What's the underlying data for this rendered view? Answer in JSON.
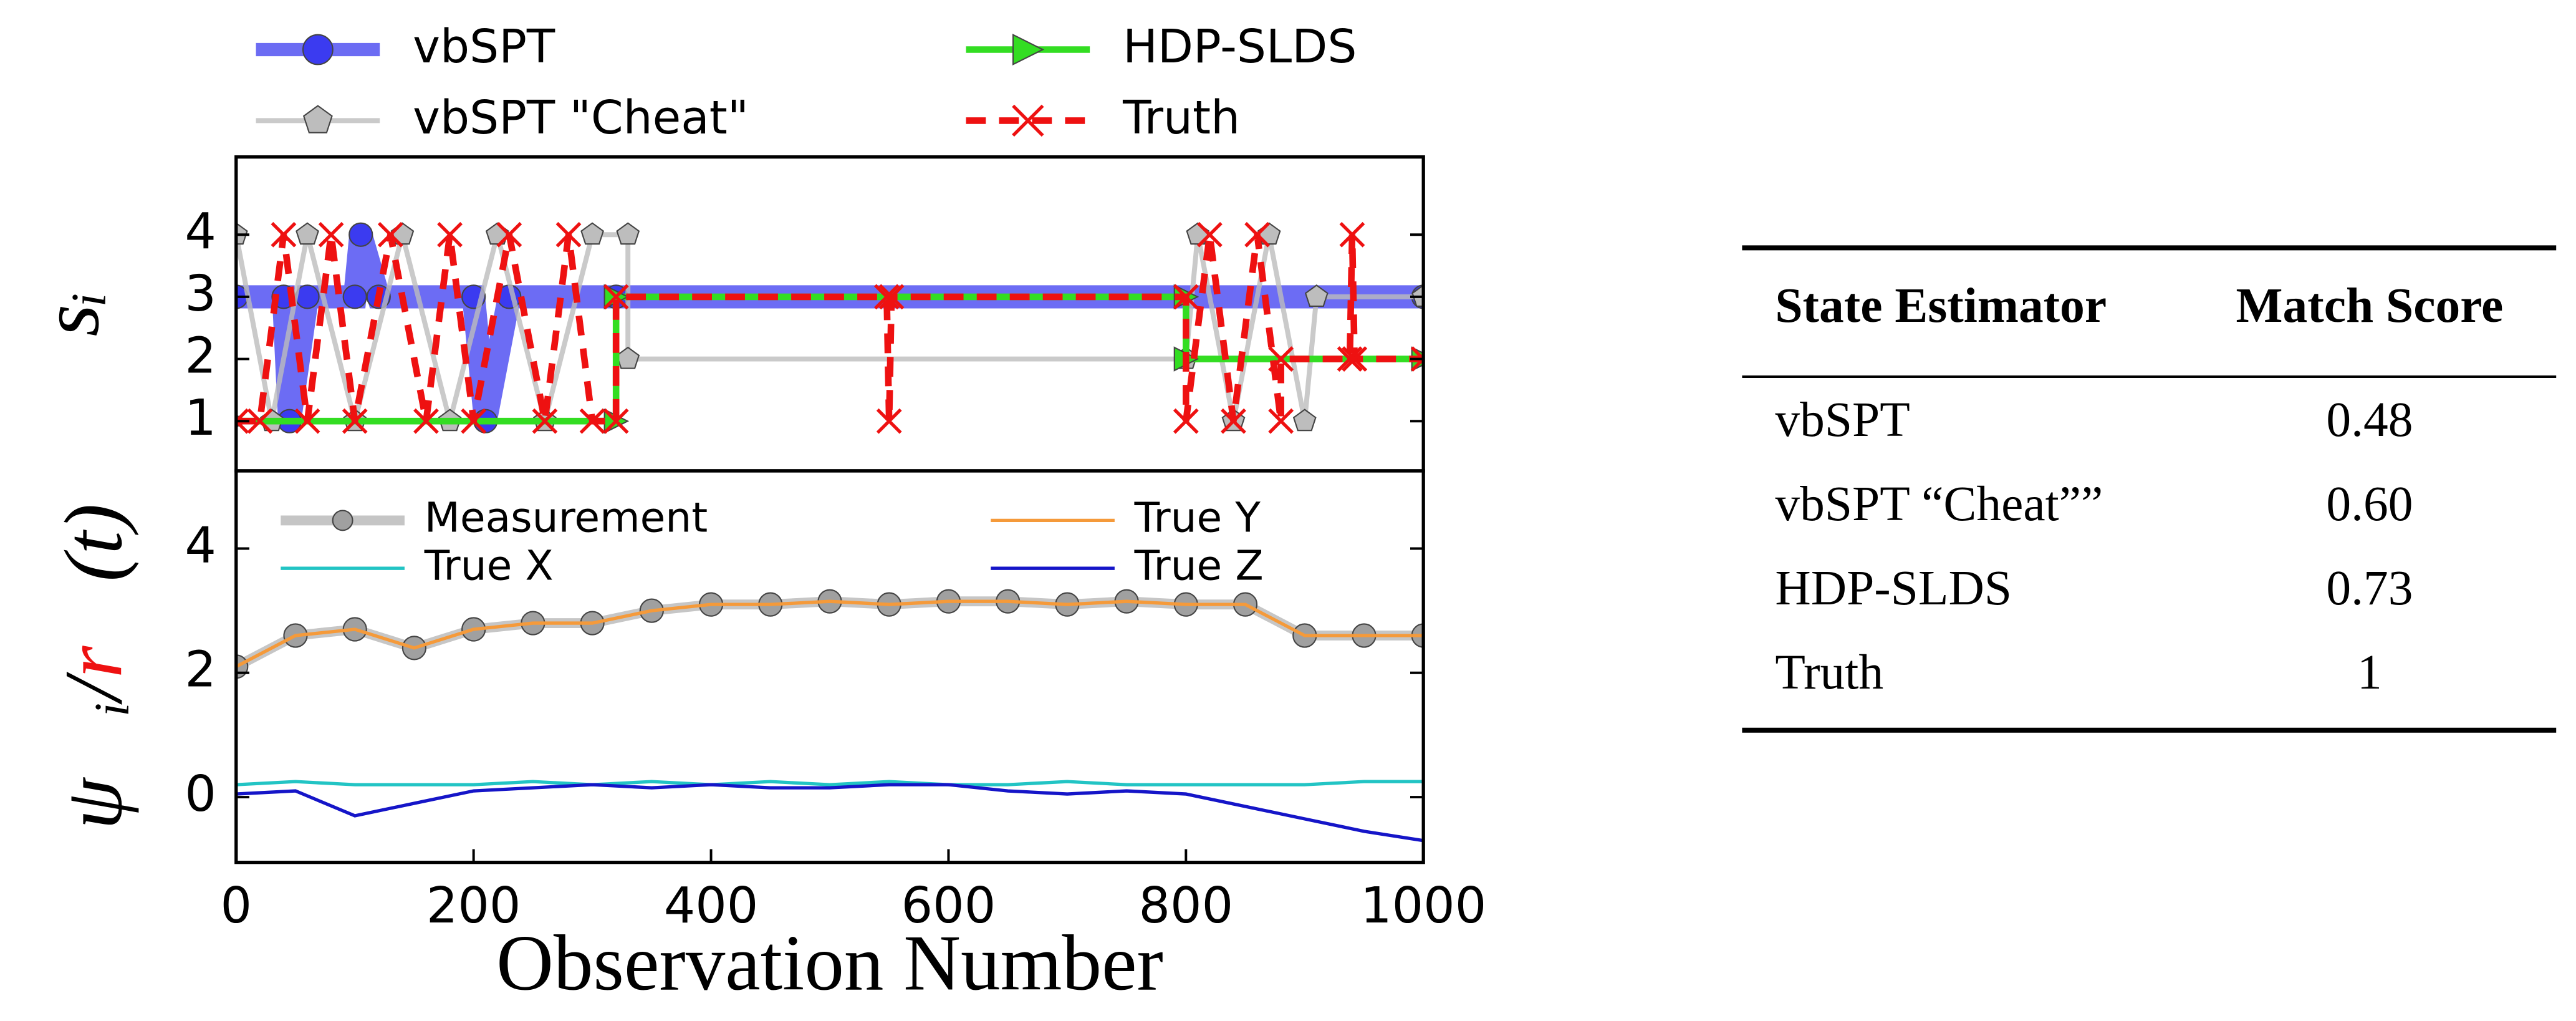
{
  "chart_data": [
    {
      "type": "line",
      "ylabel": [
        "sᵢ"
      ],
      "xlim": [
        0,
        1000
      ],
      "ylim": [
        0.2,
        5.25
      ],
      "yticks": [
        1,
        2,
        3,
        4
      ],
      "series": [
        {
          "name": "vbSPT",
          "color": "#3b3bf0",
          "marker": "o",
          "linewidth": 14,
          "opacity": 0.75,
          "x": [
            0,
            40,
            45,
            60,
            100,
            105,
            120,
            200,
            210,
            230,
            320,
            1000
          ],
          "values": [
            3,
            3,
            1,
            3,
            3,
            4,
            3,
            3,
            1,
            3,
            3,
            3
          ]
        },
        {
          "name": "vbSPT \"Cheat\"",
          "color": "#bdbdbd",
          "marker": "p",
          "linewidth": 3,
          "opacity": 0.8,
          "x": [
            0,
            30,
            60,
            100,
            140,
            180,
            220,
            260,
            300,
            330,
            330,
            800,
            810,
            840,
            870,
            900,
            910,
            1000
          ],
          "values": [
            4,
            1,
            4,
            1,
            4,
            1,
            4,
            1,
            4,
            4,
            2,
            2,
            4,
            1,
            4,
            1,
            3,
            3
          ]
        },
        {
          "name": "HDP-SLDS",
          "color": "#33dd22",
          "marker": ">",
          "linewidth": 4,
          "opacity": 1,
          "x": [
            0,
            320,
            320,
            800,
            800,
            1000
          ],
          "values": [
            1,
            1,
            3,
            3,
            2,
            2
          ]
        },
        {
          "name": "Truth",
          "color": "#ee1111",
          "marker": "x",
          "linewidth": 4,
          "opacity": 1,
          "linestyle": "dashed",
          "x": [
            0,
            20,
            40,
            60,
            80,
            100,
            130,
            160,
            180,
            200,
            230,
            260,
            280,
            300,
            320,
            320,
            548,
            550,
            552,
            800,
            800,
            820,
            840,
            860,
            880,
            880,
            938,
            940,
            942,
            1000
          ],
          "values": [
            1,
            1,
            4,
            1,
            4,
            1,
            4,
            1,
            4,
            1,
            4,
            1,
            4,
            1,
            1,
            3,
            3,
            1,
            3,
            3,
            1,
            4,
            1,
            4,
            1,
            2,
            2,
            4,
            2,
            2
          ]
        }
      ]
    },
    {
      "type": "line",
      "xlabel": "Observation Number",
      "ylabel": [
        "ψ⃗ᵢ/",
        "r⃗",
        "(t)"
      ],
      "xlim": [
        0,
        1000
      ],
      "xticks": [
        0,
        200,
        400,
        600,
        800,
        1000
      ],
      "ylim": [
        -1.05,
        5.25
      ],
      "yticks": [
        0,
        2,
        4
      ],
      "x": [
        0,
        50,
        100,
        150,
        200,
        250,
        300,
        350,
        400,
        450,
        500,
        550,
        600,
        650,
        700,
        750,
        800,
        850,
        900,
        950,
        1000
      ],
      "series": [
        {
          "name": "Measurement",
          "color": "#a0a0a0",
          "marker": "o",
          "linewidth": 6,
          "opacity": 0.6,
          "values": [
            2.1,
            2.6,
            2.7,
            2.4,
            2.7,
            2.8,
            2.8,
            3.0,
            3.1,
            3.1,
            3.15,
            3.1,
            3.15,
            3.15,
            3.1,
            3.15,
            3.1,
            3.1,
            2.6,
            2.6,
            2.6
          ]
        },
        {
          "name": "True X",
          "color": "#22c4c4",
          "linewidth": 2,
          "opacity": 1,
          "values": [
            0.2,
            0.25,
            0.2,
            0.2,
            0.2,
            0.25,
            0.2,
            0.25,
            0.2,
            0.25,
            0.2,
            0.25,
            0.2,
            0.2,
            0.25,
            0.2,
            0.2,
            0.2,
            0.2,
            0.25,
            0.25
          ]
        },
        {
          "name": "True Y",
          "color": "#f59a3a",
          "linewidth": 2,
          "opacity": 1,
          "values": [
            2.1,
            2.6,
            2.7,
            2.4,
            2.7,
            2.8,
            2.8,
            3.0,
            3.1,
            3.1,
            3.15,
            3.1,
            3.15,
            3.15,
            3.1,
            3.15,
            3.1,
            3.1,
            2.6,
            2.6,
            2.6
          ]
        },
        {
          "name": "True Z",
          "color": "#1515c8",
          "linewidth": 2,
          "opacity": 1,
          "values": [
            0.05,
            0.1,
            -0.3,
            -0.1,
            0.1,
            0.15,
            0.2,
            0.15,
            0.2,
            0.15,
            0.15,
            0.2,
            0.2,
            0.1,
            0.05,
            0.1,
            0.05,
            -0.15,
            -0.35,
            -0.55,
            -0.7
          ]
        }
      ]
    }
  ],
  "table": {
    "columns": [
      "State Estimator",
      "Match Score"
    ],
    "rows": [
      [
        "vbSPT",
        "0.48"
      ],
      [
        "vbSPT “Cheat””",
        "0.60"
      ],
      [
        "HDP-SLDS",
        "0.73"
      ],
      [
        "Truth",
        "1"
      ]
    ]
  }
}
